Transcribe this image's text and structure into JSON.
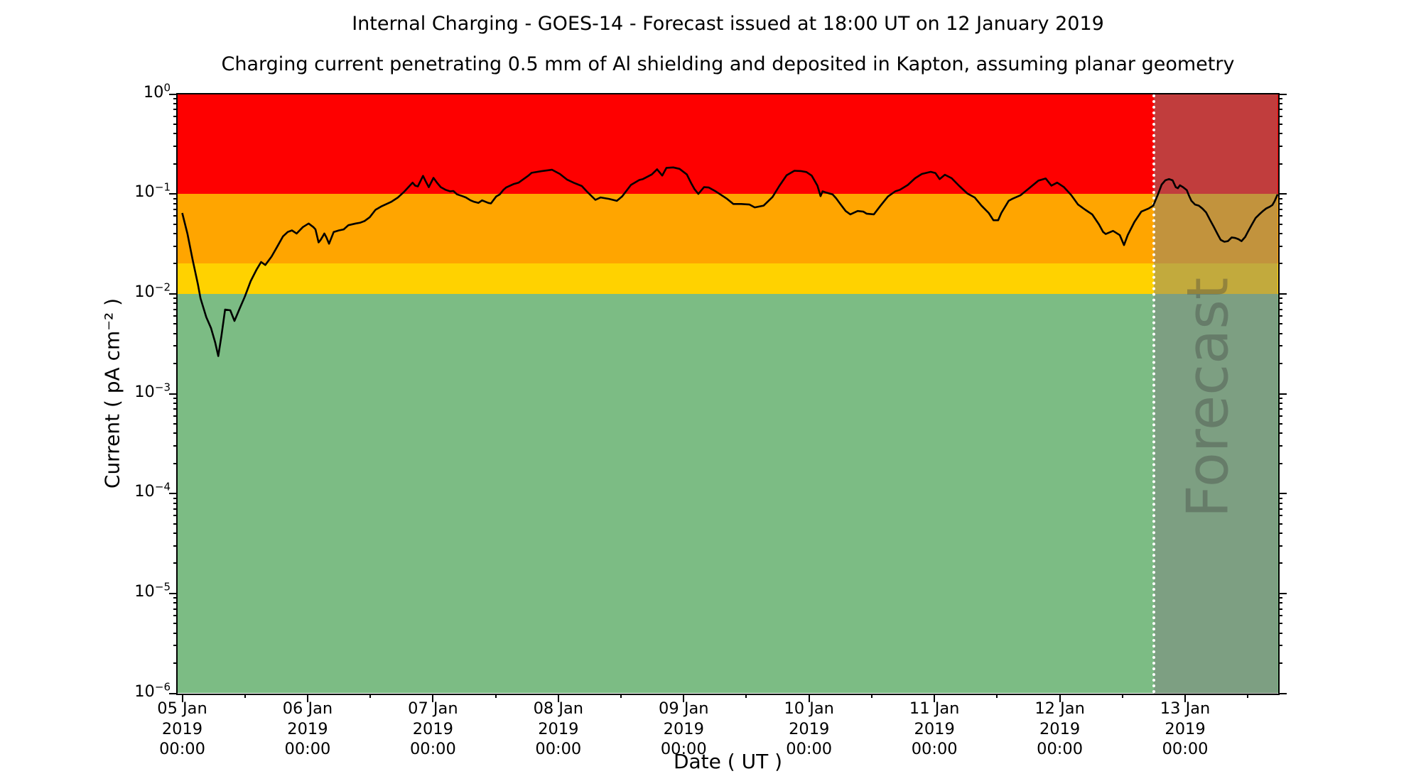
{
  "header": {
    "title": "Internal Charging - GOES-14 - Forecast issued at 18:00 UT on 12 January 2019",
    "subtitle": "Charging current penetrating 0.5 mm of Al shielding and deposited in Kapton, assuming planar geometry"
  },
  "chart_data": {
    "type": "line",
    "title": "Internal Charging - GOES-14 - Forecast issued at 18:00 UT on 12 January 2019",
    "subtitle": "Charging current penetrating 0.5 mm of Al shielding and deposited in Kapton, assuming planar geometry",
    "xlabel": "Date ( UT )",
    "ylabel": "Current ( pA cm⁻² )",
    "y_scale": "log",
    "ylim": [
      1e-06,
      1
    ],
    "x_unit": "hours since 05 Jan 2019 00:00 UT",
    "x_range_hours": [
      -0.9,
      209.8
    ],
    "grid": false,
    "legend": "none",
    "y_tick_exponents": [
      0,
      -1,
      -2,
      -3,
      -4,
      -5,
      -6
    ],
    "y_minor_mantissas": [
      2,
      3,
      4,
      5,
      6,
      7,
      8,
      9
    ],
    "x_ticks": [
      {
        "hours": 0,
        "day": "05 Jan",
        "year": "2019",
        "time": "00:00"
      },
      {
        "hours": 24,
        "day": "06 Jan",
        "year": "2019",
        "time": "00:00"
      },
      {
        "hours": 48,
        "day": "07 Jan",
        "year": "2019",
        "time": "00:00"
      },
      {
        "hours": 72,
        "day": "08 Jan",
        "year": "2019",
        "time": "00:00"
      },
      {
        "hours": 96,
        "day": "09 Jan",
        "year": "2019",
        "time": "00:00"
      },
      {
        "hours": 120,
        "day": "10 Jan",
        "year": "2019",
        "time": "00:00"
      },
      {
        "hours": 144,
        "day": "11 Jan",
        "year": "2019",
        "time": "00:00"
      },
      {
        "hours": 168,
        "day": "12 Jan",
        "year": "2019",
        "time": "00:00"
      },
      {
        "hours": 192,
        "day": "13 Jan",
        "year": "2019",
        "time": "00:00"
      }
    ],
    "x_minor_ticks_hours": [
      12,
      36,
      60,
      84,
      108,
      132,
      156,
      180,
      204
    ],
    "bands": [
      {
        "name": "red",
        "from": 0.1,
        "to": 1.0,
        "color": "#fe0000"
      },
      {
        "name": "orange",
        "from": 0.02,
        "to": 0.1,
        "color": "#ffa500"
      },
      {
        "name": "yellow",
        "from": 0.01,
        "to": 0.02,
        "color": "#ffd200"
      },
      {
        "name": "green",
        "from": 1e-06,
        "to": 0.01,
        "color": "#7cbc84"
      }
    ],
    "forecast": {
      "label": "Forecast",
      "start_hours": 186,
      "start_time": "12 Jan 2019 18:00 UT",
      "overlay_color": "rgba(128,128,128,0.48)",
      "divider_style": "white dotted vertical line"
    },
    "series": [
      {
        "name": "charging current",
        "color": "#000000",
        "points": [
          [
            0,
            0.065
          ],
          [
            1,
            0.04
          ],
          [
            2,
            0.022
          ],
          [
            3,
            0.0125
          ],
          [
            3.5,
            0.0091
          ],
          [
            4.6,
            0.0059
          ],
          [
            5.5,
            0.0046
          ],
          [
            6.3,
            0.0033
          ],
          [
            6.9,
            0.0024
          ],
          [
            7.5,
            0.0038
          ],
          [
            8.2,
            0.007
          ],
          [
            9.2,
            0.0069
          ],
          [
            10,
            0.0054
          ],
          [
            11,
            0.0072
          ],
          [
            12,
            0.0095
          ],
          [
            13.1,
            0.0135
          ],
          [
            14.2,
            0.0175
          ],
          [
            15.1,
            0.021
          ],
          [
            15.9,
            0.0196
          ],
          [
            17.1,
            0.0238
          ],
          [
            18.2,
            0.03
          ],
          [
            19.3,
            0.038
          ],
          [
            20.2,
            0.042
          ],
          [
            21,
            0.0435
          ],
          [
            21.9,
            0.0405
          ],
          [
            23.1,
            0.047
          ],
          [
            24.2,
            0.051
          ],
          [
            25.1,
            0.047
          ],
          [
            25.5,
            0.0445
          ],
          [
            26.1,
            0.033
          ],
          [
            26.5,
            0.035
          ],
          [
            26.9,
            0.038
          ],
          [
            27.2,
            0.0405
          ],
          [
            27.6,
            0.037
          ],
          [
            28.1,
            0.032
          ],
          [
            29,
            0.042
          ],
          [
            30,
            0.0435
          ],
          [
            30.9,
            0.0445
          ],
          [
            31.8,
            0.049
          ],
          [
            33.2,
            0.051
          ],
          [
            34.1,
            0.052
          ],
          [
            34.9,
            0.054
          ],
          [
            35.9,
            0.059
          ],
          [
            37,
            0.07
          ],
          [
            38.2,
            0.076
          ],
          [
            40,
            0.084
          ],
          [
            41.3,
            0.093
          ],
          [
            42.4,
            0.105
          ],
          [
            44.1,
            0.131
          ],
          [
            44.6,
            0.122
          ],
          [
            45.1,
            0.12
          ],
          [
            46.1,
            0.153
          ],
          [
            46.6,
            0.135
          ],
          [
            47.2,
            0.118
          ],
          [
            48.1,
            0.146
          ],
          [
            48.8,
            0.13
          ],
          [
            49.5,
            0.118
          ],
          [
            50.4,
            0.111
          ],
          [
            51.3,
            0.107
          ],
          [
            51.9,
            0.108
          ],
          [
            52.6,
            0.1
          ],
          [
            53.6,
            0.096
          ],
          [
            54.3,
            0.093
          ],
          [
            55.2,
            0.087
          ],
          [
            55.9,
            0.084
          ],
          [
            56.7,
            0.082
          ],
          [
            57.4,
            0.087
          ],
          [
            58.6,
            0.082
          ],
          [
            59.1,
            0.081
          ],
          [
            60.1,
            0.095
          ],
          [
            60.8,
            0.1
          ],
          [
            61.5,
            0.111
          ],
          [
            62,
            0.117
          ],
          [
            63.5,
            0.127
          ],
          [
            64.4,
            0.131
          ],
          [
            66.2,
            0.153
          ],
          [
            66.9,
            0.164
          ],
          [
            68.9,
            0.171
          ],
          [
            70.8,
            0.176
          ],
          [
            72.3,
            0.16
          ],
          [
            73.7,
            0.14
          ],
          [
            75,
            0.13
          ],
          [
            76.5,
            0.121
          ],
          [
            77.6,
            0.105
          ],
          [
            79.1,
            0.088
          ],
          [
            80.1,
            0.093
          ],
          [
            81.7,
            0.09
          ],
          [
            83.2,
            0.086
          ],
          [
            84.2,
            0.095
          ],
          [
            85.9,
            0.124
          ],
          [
            87.5,
            0.139
          ],
          [
            88.2,
            0.142
          ],
          [
            89.9,
            0.158
          ],
          [
            90.9,
            0.178
          ],
          [
            91.9,
            0.154
          ],
          [
            92.7,
            0.184
          ],
          [
            94,
            0.186
          ],
          [
            95.2,
            0.18
          ],
          [
            96.6,
            0.158
          ],
          [
            97.4,
            0.13
          ],
          [
            98.1,
            0.112
          ],
          [
            98.8,
            0.101
          ],
          [
            99.9,
            0.118
          ],
          [
            100.8,
            0.117
          ],
          [
            102,
            0.108
          ],
          [
            103,
            0.1
          ],
          [
            104.3,
            0.09
          ],
          [
            105.5,
            0.08
          ],
          [
            107,
            0.08
          ],
          [
            108.6,
            0.079
          ],
          [
            109.6,
            0.074
          ],
          [
            111.3,
            0.077
          ],
          [
            113,
            0.094
          ],
          [
            114.3,
            0.121
          ],
          [
            115.7,
            0.155
          ],
          [
            117.2,
            0.172
          ],
          [
            118.4,
            0.171
          ],
          [
            119.5,
            0.167
          ],
          [
            120.5,
            0.154
          ],
          [
            121.6,
            0.122
          ],
          [
            122.2,
            0.096
          ],
          [
            122.6,
            0.107
          ],
          [
            123.3,
            0.104
          ],
          [
            124.5,
            0.1
          ],
          [
            125.2,
            0.091
          ],
          [
            125.9,
            0.081
          ],
          [
            127,
            0.068
          ],
          [
            127.9,
            0.063
          ],
          [
            129.3,
            0.068
          ],
          [
            130.4,
            0.067
          ],
          [
            131,
            0.064
          ],
          [
            132.4,
            0.063
          ],
          [
            133.7,
            0.077
          ],
          [
            135.1,
            0.095
          ],
          [
            136.5,
            0.107
          ],
          [
            137.4,
            0.111
          ],
          [
            138.9,
            0.124
          ],
          [
            140.3,
            0.145
          ],
          [
            141.6,
            0.16
          ],
          [
            143.3,
            0.168
          ],
          [
            144.2,
            0.163
          ],
          [
            145,
            0.142
          ],
          [
            146,
            0.157
          ],
          [
            147.3,
            0.145
          ],
          [
            148.7,
            0.122
          ],
          [
            150.3,
            0.102
          ],
          [
            151.7,
            0.093
          ],
          [
            153,
            0.077
          ],
          [
            154.4,
            0.065
          ],
          [
            155.3,
            0.055
          ],
          [
            156.2,
            0.055
          ],
          [
            156.8,
            0.065
          ],
          [
            158.2,
            0.086
          ],
          [
            158.9,
            0.09
          ],
          [
            160.5,
            0.098
          ],
          [
            162.3,
            0.117
          ],
          [
            163.9,
            0.137
          ],
          [
            165.3,
            0.144
          ],
          [
            166.4,
            0.122
          ],
          [
            167.5,
            0.131
          ],
          [
            168.8,
            0.118
          ],
          [
            170.2,
            0.098
          ],
          [
            171.5,
            0.079
          ],
          [
            172.9,
            0.07
          ],
          [
            174.2,
            0.063
          ],
          [
            175.5,
            0.05
          ],
          [
            176.3,
            0.042
          ],
          [
            176.8,
            0.04
          ],
          [
            178.2,
            0.043
          ],
          [
            179.5,
            0.039
          ],
          [
            180.3,
            0.031
          ],
          [
            181,
            0.039
          ],
          [
            182.3,
            0.053
          ],
          [
            183.6,
            0.067
          ],
          [
            185,
            0.072
          ],
          [
            185.9,
            0.077
          ],
          [
            186.8,
            0.1
          ],
          [
            187.5,
            0.125
          ],
          [
            188.2,
            0.138
          ],
          [
            188.9,
            0.142
          ],
          [
            189.6,
            0.138
          ],
          [
            190.2,
            0.118
          ],
          [
            190.6,
            0.115
          ],
          [
            191,
            0.123
          ],
          [
            191.6,
            0.118
          ],
          [
            192.3,
            0.11
          ],
          [
            192.7,
            0.098
          ],
          [
            193.2,
            0.086
          ],
          [
            193.9,
            0.079
          ],
          [
            194.6,
            0.077
          ],
          [
            195.3,
            0.072
          ],
          [
            196,
            0.066
          ],
          [
            196.8,
            0.055
          ],
          [
            197.5,
            0.047
          ],
          [
            198.2,
            0.04
          ],
          [
            198.8,
            0.035
          ],
          [
            199.5,
            0.0335
          ],
          [
            200.2,
            0.034
          ],
          [
            200.9,
            0.037
          ],
          [
            201.6,
            0.0365
          ],
          [
            202.2,
            0.0355
          ],
          [
            202.8,
            0.034
          ],
          [
            203.5,
            0.0375
          ],
          [
            204.1,
            0.043
          ],
          [
            204.8,
            0.05
          ],
          [
            205.5,
            0.058
          ],
          [
            206.2,
            0.063
          ],
          [
            206.9,
            0.068
          ],
          [
            207.5,
            0.072
          ],
          [
            208.2,
            0.075
          ],
          [
            208.7,
            0.078
          ],
          [
            209.1,
            0.085
          ],
          [
            209.7,
            0.1
          ]
        ]
      }
    ]
  }
}
